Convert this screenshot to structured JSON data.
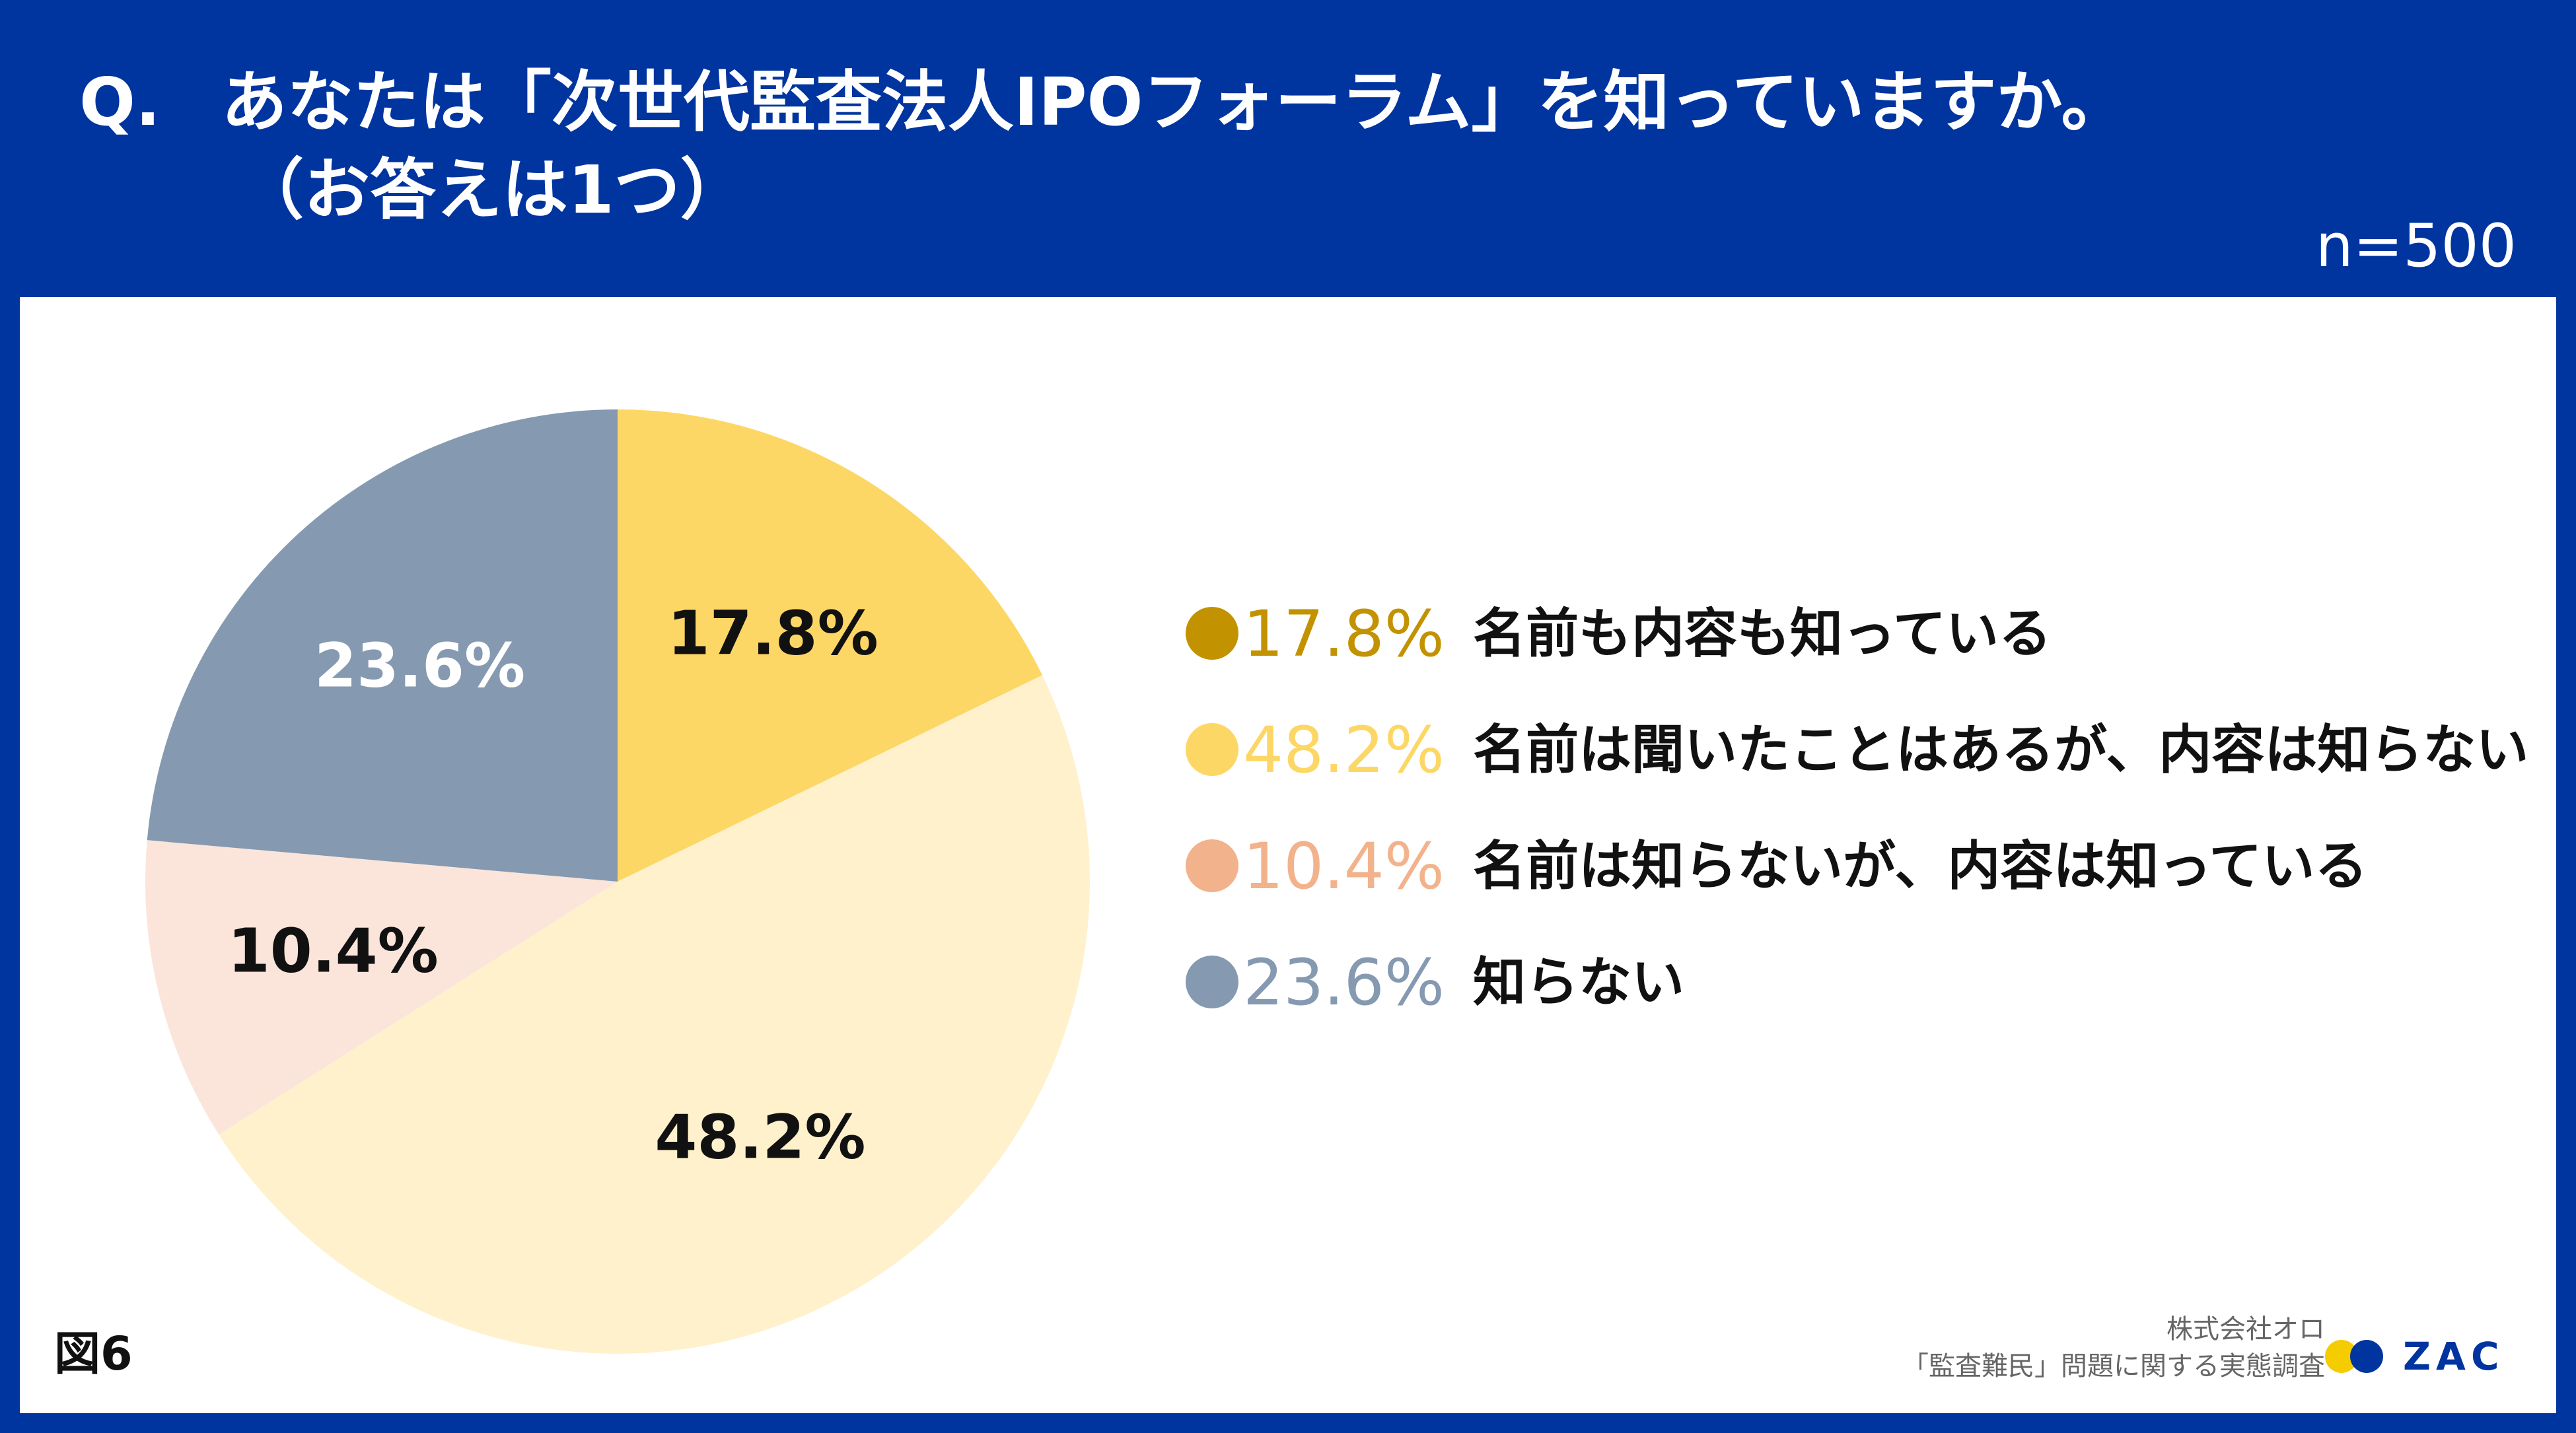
{
  "header": {
    "q_label": "Q.",
    "question_line1": "あなたは「次世代監査法人IPOフォーラム」を知っていますか。",
    "question_line2": "（お答えは1つ）",
    "sample_size": "n=500"
  },
  "chart_data": {
    "type": "pie",
    "title": "あなたは「次世代監査法人IPOフォーラム」を知っていますか。（お答えは1つ）",
    "unit": "%",
    "start_angle": "12 o'clock",
    "direction": "clockwise",
    "slices": [
      {
        "label": "名前も内容も知っている",
        "value": 17.8,
        "value_label": "17.8%",
        "color": "#fdd766",
        "legend_color": "#c39200",
        "label_color": "#111111"
      },
      {
        "label": "名前は聞いたことはあるが、内容は知らない",
        "value": 48.2,
        "value_label": "48.2%",
        "color": "#fff1cc",
        "legend_color": "#fdd766",
        "label_color": "#111111"
      },
      {
        "label": "名前は知らないが、内容は知っている",
        "value": 10.4,
        "value_label": "10.4%",
        "color": "#fbe5da",
        "legend_color": "#f2b38c",
        "label_color": "#111111"
      },
      {
        "label": "知らない",
        "value": 23.6,
        "value_label": "23.6%",
        "color": "#8599b1",
        "legend_color": "#8599b1",
        "label_color": "#ffffff"
      }
    ]
  },
  "footer": {
    "figure_label": "図6",
    "credit_line1": "株式会社オロ",
    "credit_line2": "「監査難民」問題に関する実態調査",
    "logo_text": "ZAC"
  }
}
